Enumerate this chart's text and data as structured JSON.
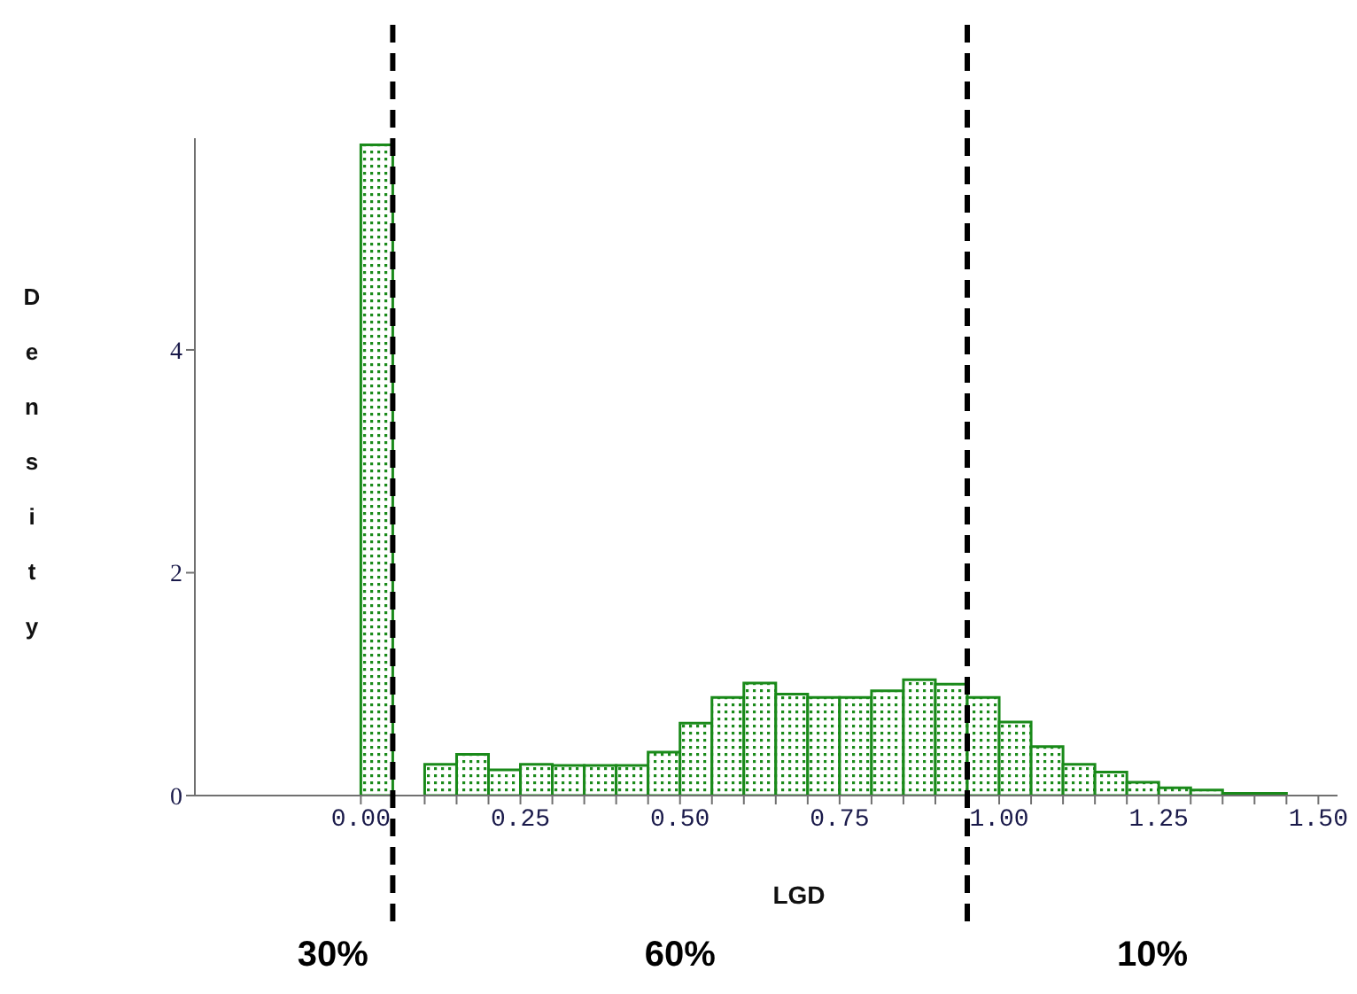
{
  "chart_data": {
    "type": "histogram",
    "xlabel": "LGD",
    "ylabel": "Density",
    "color": "#1a8a1a",
    "bins": [
      0,
      0.05,
      0.1,
      0.15,
      0.2,
      0.25,
      0.3,
      0.35,
      0.4,
      0.45,
      0.5,
      0.55,
      0.6,
      0.65,
      0.7,
      0.75,
      0.8,
      0.85,
      0.9,
      0.95,
      1.0,
      1.05,
      1.1,
      1.15,
      1.2,
      1.25,
      1.3,
      1.35,
      1.4,
      1.45
    ],
    "values": [
      5.84,
      0,
      0.28,
      0.37,
      0.23,
      0.28,
      0.27,
      0.27,
      0.27,
      0.39,
      0.65,
      0.88,
      1.01,
      0.91,
      0.88,
      0.88,
      0.94,
      1.04,
      1.0,
      0.88,
      0.66,
      0.44,
      0.28,
      0.21,
      0.12,
      0.07,
      0.05,
      0.02,
      0.02
    ],
    "xlim": [
      -0.26,
      1.53
    ],
    "ylim": [
      0,
      5.9
    ],
    "xticks": [
      {
        "value": 0,
        "label": "0.00"
      },
      {
        "value": 0.05,
        "label": null
      },
      {
        "value": 0.1,
        "label": null
      },
      {
        "value": 0.15,
        "label": null
      },
      {
        "value": 0.2,
        "label": null
      },
      {
        "value": 0.25,
        "label": "0.25"
      },
      {
        "value": 0.3,
        "label": null
      },
      {
        "value": 0.35,
        "label": null
      },
      {
        "value": 0.4,
        "label": null
      },
      {
        "value": 0.45,
        "label": null
      },
      {
        "value": 0.5,
        "label": "0.50"
      },
      {
        "value": 0.55,
        "label": null
      },
      {
        "value": 0.6,
        "label": null
      },
      {
        "value": 0.65,
        "label": null
      },
      {
        "value": 0.7,
        "label": null
      },
      {
        "value": 0.75,
        "label": "0.75"
      },
      {
        "value": 0.8,
        "label": null
      },
      {
        "value": 0.85,
        "label": null
      },
      {
        "value": 0.9,
        "label": null
      },
      {
        "value": 0.95,
        "label": null
      },
      {
        "value": 1.0,
        "label": "1.00"
      },
      {
        "value": 1.05,
        "label": null
      },
      {
        "value": 1.1,
        "label": null
      },
      {
        "value": 1.15,
        "label": null
      },
      {
        "value": 1.2,
        "label": null
      },
      {
        "value": 1.25,
        "label": "1.25"
      },
      {
        "value": 1.3,
        "label": null
      },
      {
        "value": 1.35,
        "label": null
      },
      {
        "value": 1.4,
        "label": null
      },
      {
        "value": 1.45,
        "label": null
      },
      {
        "value": 1.5,
        "label": "1.50"
      }
    ],
    "yticks": [
      0,
      2,
      4
    ],
    "ref_lines": [
      {
        "axis": "x",
        "value": 0.05,
        "color": "#000000",
        "line_style": "dashed"
      },
      {
        "axis": "x",
        "value": 0.95,
        "color": "#000000",
        "line_style": "dashed"
      }
    ],
    "annotations": [
      "30%",
      "60%",
      "10%"
    ]
  }
}
